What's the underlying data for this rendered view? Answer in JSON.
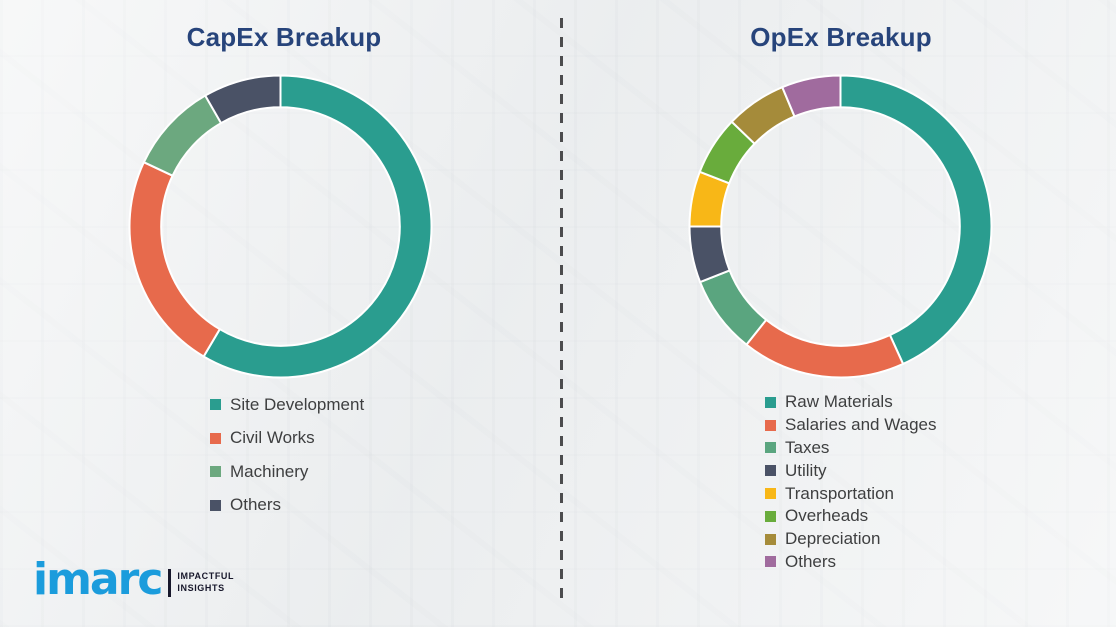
{
  "page": {
    "background_color": "#eef0f1",
    "separator_style": "vertical-dashed",
    "separator_color": "#4c4c4e"
  },
  "chart_data": [
    {
      "type": "pie",
      "subtype": "donut",
      "title": "CapEx Breakup",
      "categories": [
        "Site Development",
        "Civil Works",
        "Machinery",
        "Others"
      ],
      "values": [
        58.5,
        23.5,
        9.7,
        8.3
      ],
      "colors": [
        "#2a9d8f",
        "#e76a4c",
        "#6ca87f",
        "#4a5266"
      ],
      "start_angle_deg": 0,
      "direction": "clockwise",
      "legend_position": "bottom",
      "inner_radius_ratio": 0.79,
      "segment_gap_color": "#ffffff"
    },
    {
      "type": "pie",
      "subtype": "donut",
      "title": "OpEx Breakup",
      "categories": [
        "Raw Materials",
        "Salaries and Wages",
        "Taxes",
        "Utility",
        "Transportation",
        "Overheads",
        "Depreciation",
        "Others"
      ],
      "values": [
        43.2,
        17.5,
        8.3,
        6.0,
        5.9,
        6.3,
        6.5,
        6.3
      ],
      "colors": [
        "#2a9d8f",
        "#e76a4c",
        "#5aa57f",
        "#4a5266",
        "#f8b717",
        "#69ac3c",
        "#a58b3a",
        "#a06b9e"
      ],
      "start_angle_deg": 0,
      "direction": "clockwise",
      "legend_position": "bottom",
      "inner_radius_ratio": 0.79,
      "segment_gap_color": "#ffffff"
    }
  ],
  "titles": {
    "title_color": "#27447b"
  },
  "logo": {
    "brand": "imarc",
    "tagline_line1": "IMPACTFUL",
    "tagline_line2": "INSIGHTS",
    "brand_color": "#1b9cdc"
  }
}
